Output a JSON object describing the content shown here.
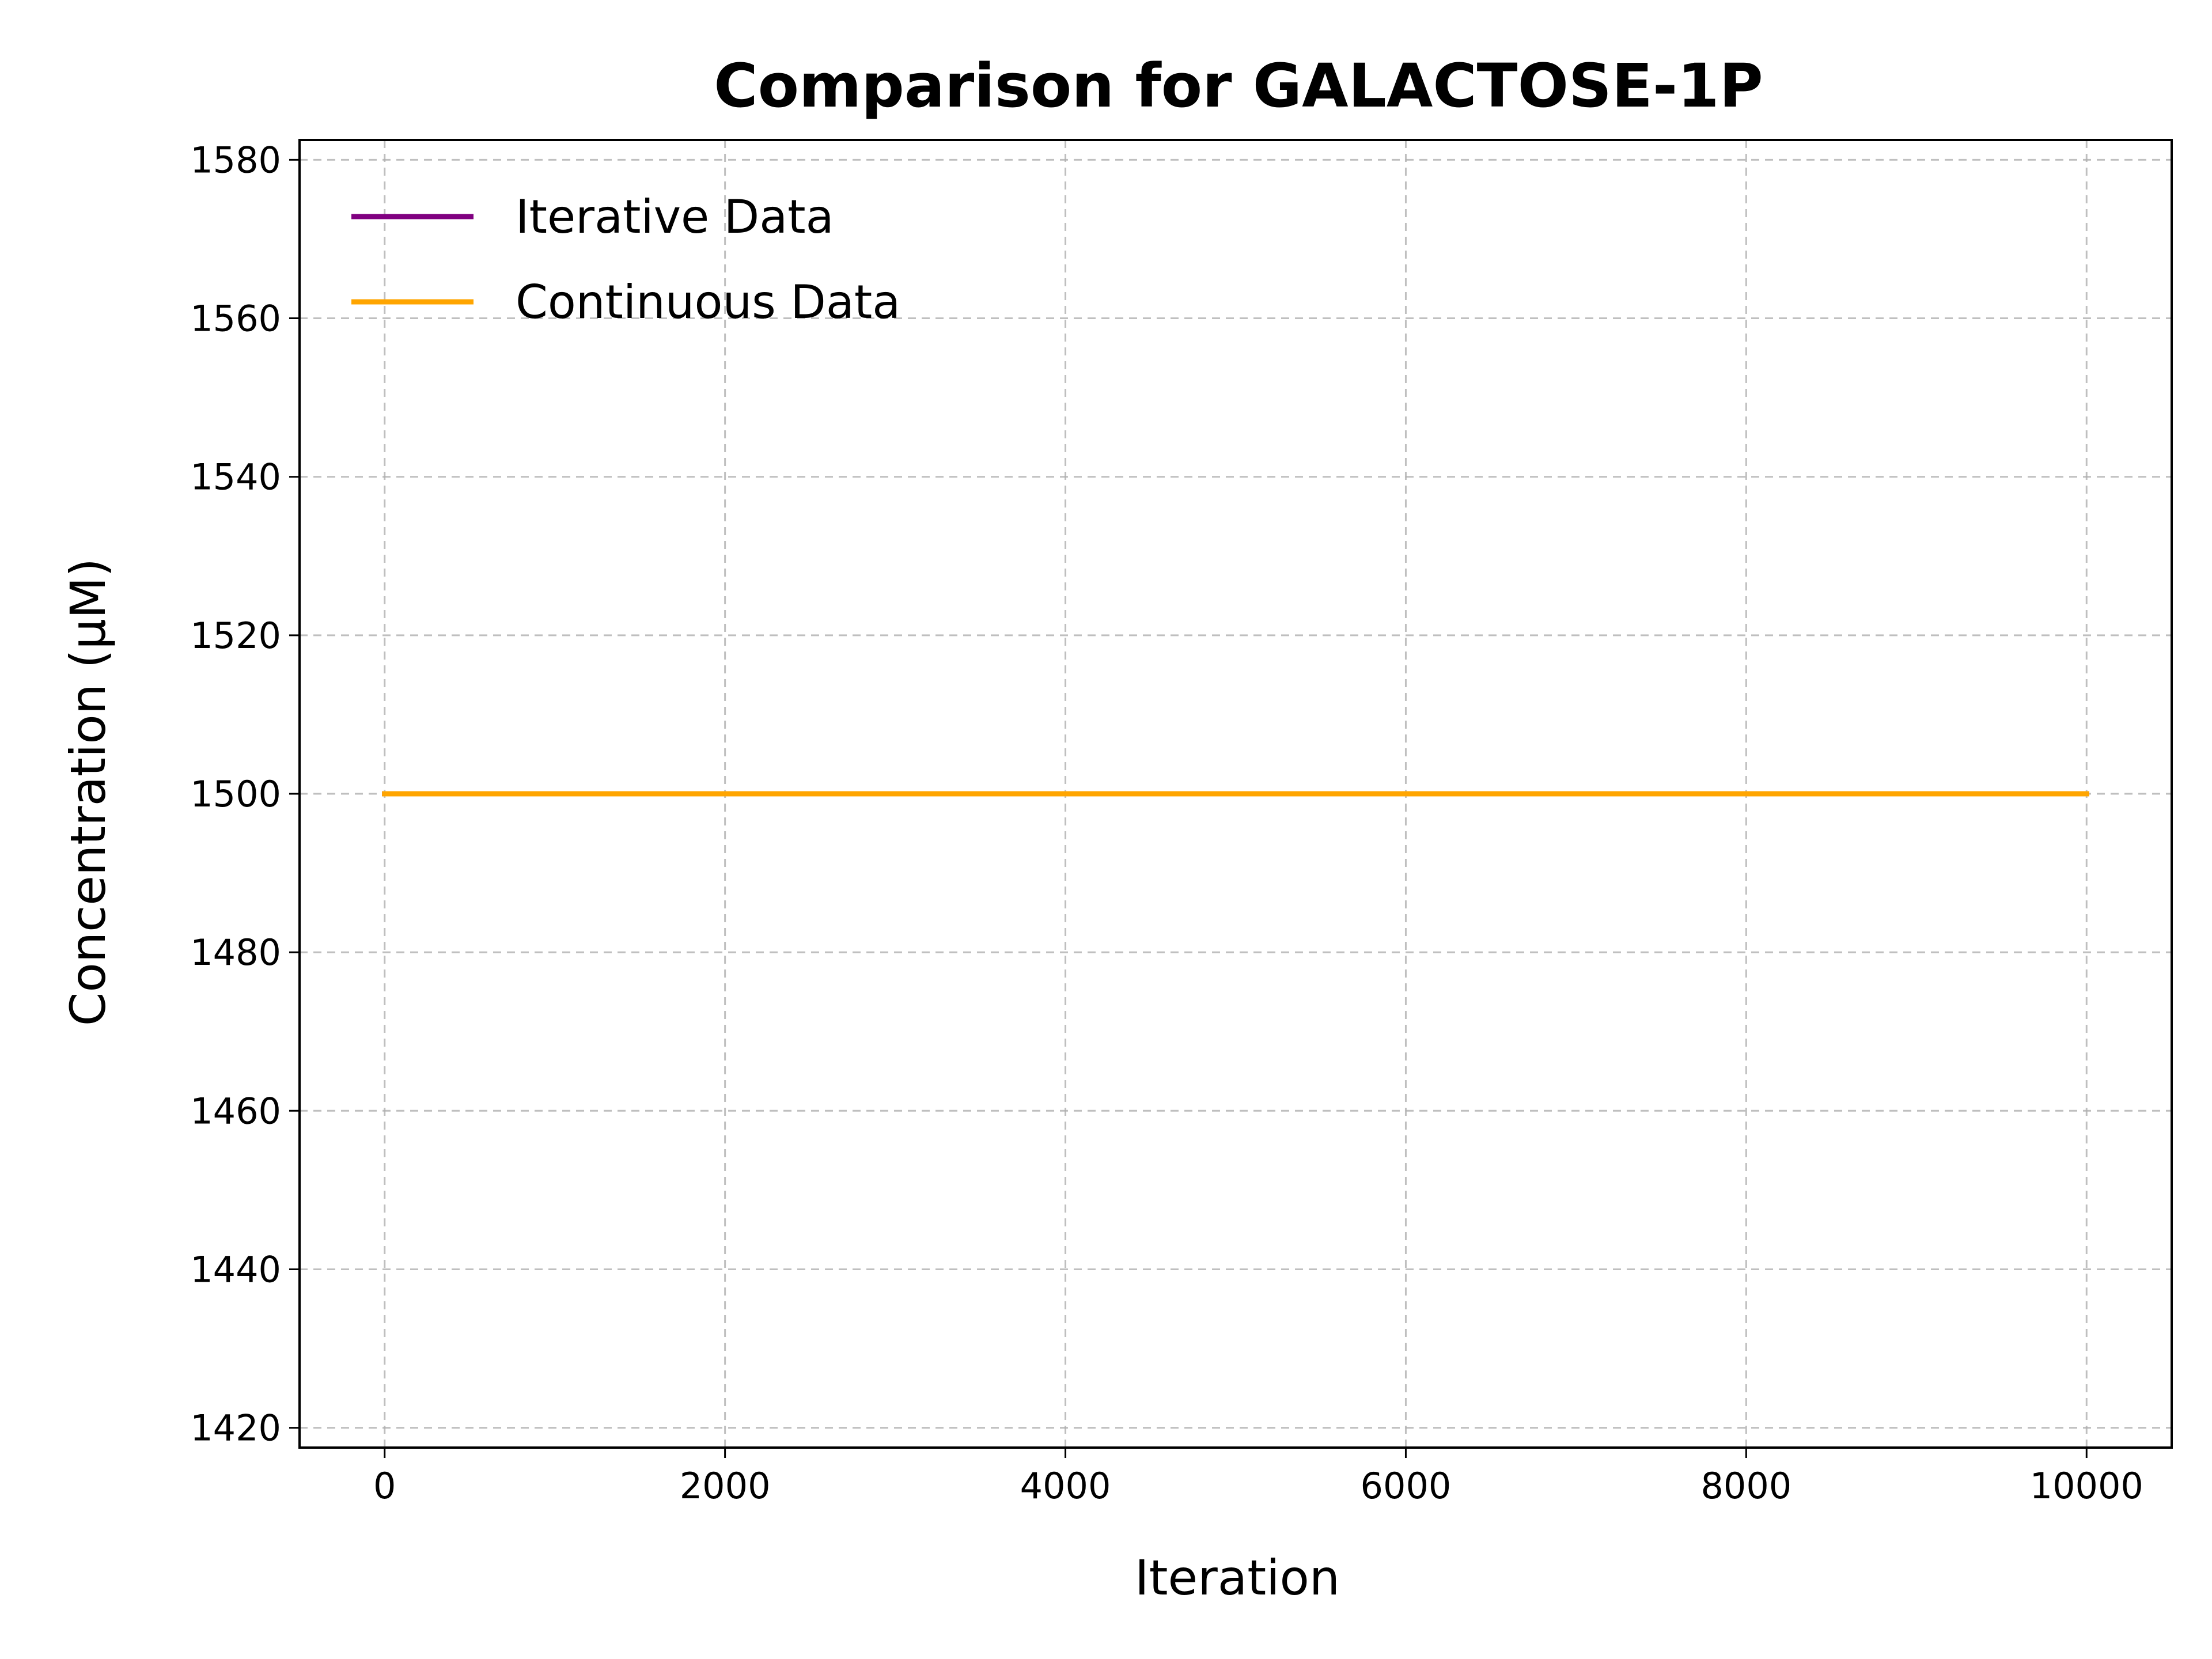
{
  "chart_data": {
    "type": "line",
    "title": "Comparison for GALACTOSE-1P",
    "xlabel": "Iteration",
    "ylabel": "Concentration (μM)",
    "xlim": [
      -500,
      10500
    ],
    "ylim": [
      1417.5,
      1582.5
    ],
    "x_ticks": [
      0,
      2000,
      4000,
      6000,
      8000,
      10000
    ],
    "y_ticks": [
      1420,
      1440,
      1460,
      1480,
      1500,
      1520,
      1540,
      1560,
      1580
    ],
    "grid": true,
    "legend_position": "upper-left",
    "series": [
      {
        "name": "Iterative Data",
        "color": "#800080",
        "x": [
          0,
          10000
        ],
        "y": [
          1500,
          1500
        ]
      },
      {
        "name": "Continuous Data",
        "color": "#FFA500",
        "x": [
          0,
          10000
        ],
        "y": [
          1500,
          1500
        ]
      }
    ]
  }
}
